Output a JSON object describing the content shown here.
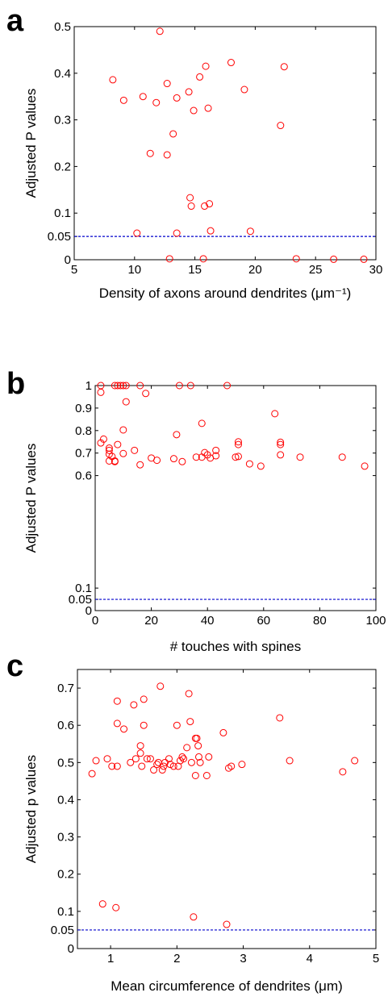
{
  "chart_data": [
    {
      "panel": "a",
      "type": "scatter",
      "xlabel": "Density of axons around dendrites (μm⁻¹)",
      "ylabel": "Adjusted P values",
      "xlim": [
        5,
        30
      ],
      "ylim": [
        0,
        0.5
      ],
      "xticks": [
        "5",
        "10",
        "15",
        "20",
        "25",
        "30"
      ],
      "yticks": [
        "0",
        "0.05",
        "0.1",
        "0.2",
        "0.3",
        "0.4",
        "0.5"
      ],
      "ytick_values": [
        0,
        0.05,
        0.1,
        0.2,
        0.3,
        0.4,
        0.5
      ],
      "xtick_values": [
        5,
        10,
        15,
        20,
        25,
        30
      ],
      "reference_line": 0.05,
      "grid": false,
      "marker_color": "#ff0000",
      "line_color": "#0000cc",
      "points": [
        [
          12.1,
          0.49
        ],
        [
          8.2,
          0.386
        ],
        [
          9.1,
          0.342
        ],
        [
          10.7,
          0.35
        ],
        [
          11.8,
          0.337
        ],
        [
          11.3,
          0.228
        ],
        [
          12.7,
          0.378
        ],
        [
          12.7,
          0.225
        ],
        [
          13.2,
          0.27
        ],
        [
          13.5,
          0.347
        ],
        [
          14.5,
          0.36
        ],
        [
          14.9,
          0.32
        ],
        [
          15.4,
          0.392
        ],
        [
          15.9,
          0.415
        ],
        [
          16.1,
          0.325
        ],
        [
          18.0,
          0.423
        ],
        [
          19.1,
          0.365
        ],
        [
          22.1,
          0.288
        ],
        [
          22.4,
          0.414
        ],
        [
          14.6,
          0.133
        ],
        [
          14.7,
          0.115
        ],
        [
          15.8,
          0.115
        ],
        [
          16.2,
          0.12
        ],
        [
          10.2,
          0.057
        ],
        [
          13.5,
          0.057
        ],
        [
          16.3,
          0.062
        ],
        [
          19.6,
          0.061
        ],
        [
          12.9,
          0.002
        ],
        [
          15.7,
          0.002
        ],
        [
          23.4,
          0.002
        ],
        [
          26.5,
          0.001
        ],
        [
          29.0,
          0.001
        ]
      ]
    },
    {
      "panel": "b",
      "type": "scatter",
      "xlabel": "# touches with spines",
      "ylabel": "Adjusted P values",
      "xlim": [
        0,
        100
      ],
      "ylim": [
        0,
        1
      ],
      "xticks": [
        "0",
        "20",
        "40",
        "60",
        "80",
        "100"
      ],
      "yticks": [
        "0",
        "0.05",
        "0.1",
        "0.6",
        "0.7",
        "0.8",
        "0.9",
        "1"
      ],
      "ytick_values": [
        0,
        0.05,
        0.1,
        0.6,
        0.7,
        0.8,
        0.9,
        1
      ],
      "xtick_values": [
        0,
        20,
        40,
        60,
        80,
        100
      ],
      "reference_line": 0.05,
      "grid": false,
      "marker_color": "#ff0000",
      "line_color": "#0000cc",
      "points": [
        [
          2,
          1.0
        ],
        [
          2,
          0.97
        ],
        [
          7,
          1.0
        ],
        [
          8,
          1.0
        ],
        [
          9,
          1.0
        ],
        [
          10,
          1.0
        ],
        [
          11,
          1.0
        ],
        [
          16,
          1.0
        ],
        [
          30,
          1.0
        ],
        [
          34,
          1.0
        ],
        [
          47,
          1.0
        ],
        [
          18,
          0.965
        ],
        [
          11,
          0.928
        ],
        [
          38,
          0.832
        ],
        [
          64,
          0.875
        ],
        [
          10,
          0.803
        ],
        [
          29,
          0.782
        ],
        [
          2,
          0.745
        ],
        [
          3,
          0.762
        ],
        [
          8,
          0.738
        ],
        [
          14,
          0.712
        ],
        [
          5,
          0.722
        ],
        [
          5,
          0.712
        ],
        [
          5,
          0.695
        ],
        [
          6,
          0.685
        ],
        [
          5,
          0.665
        ],
        [
          7,
          0.662
        ],
        [
          7,
          0.665
        ],
        [
          10,
          0.698
        ],
        [
          16,
          0.648
        ],
        [
          20,
          0.678
        ],
        [
          22,
          0.668
        ],
        [
          28,
          0.675
        ],
        [
          31,
          0.662
        ],
        [
          36,
          0.682
        ],
        [
          38,
          0.682
        ],
        [
          39,
          0.702
        ],
        [
          40,
          0.692
        ],
        [
          41,
          0.678
        ],
        [
          43,
          0.712
        ],
        [
          43,
          0.688
        ],
        [
          50,
          0.682
        ],
        [
          51,
          0.685
        ],
        [
          51,
          0.738
        ],
        [
          51,
          0.75
        ],
        [
          55,
          0.652
        ],
        [
          59,
          0.642
        ],
        [
          66,
          0.738
        ],
        [
          66,
          0.748
        ],
        [
          66,
          0.692
        ],
        [
          73,
          0.682
        ],
        [
          88,
          0.682
        ],
        [
          96,
          0.642
        ]
      ]
    },
    {
      "panel": "c",
      "type": "scatter",
      "xlabel": "Mean circumference of dendrites (μm)",
      "ylabel": "Adjusted p values",
      "xlim": [
        0.5,
        5
      ],
      "ylim": [
        0,
        0.75
      ],
      "xticks": [
        "1",
        "2",
        "3",
        "4",
        "5"
      ],
      "yticks": [
        "0",
        "0.05",
        "0.1",
        "0.2",
        "0.3",
        "0.4",
        "0.5",
        "0.6",
        "0.7"
      ],
      "ytick_values": [
        0,
        0.05,
        0.1,
        0.2,
        0.3,
        0.4,
        0.5,
        0.6,
        0.7
      ],
      "xtick_values": [
        1,
        2,
        3,
        4,
        5
      ],
      "reference_line": 0.05,
      "grid": false,
      "marker_color": "#ff0000",
      "line_color": "#0000cc",
      "points": [
        [
          0.72,
          0.47
        ],
        [
          0.78,
          0.505
        ],
        [
          0.88,
          0.12
        ],
        [
          0.95,
          0.51
        ],
        [
          1.02,
          0.49
        ],
        [
          1.08,
          0.11
        ],
        [
          1.1,
          0.665
        ],
        [
          1.1,
          0.605
        ],
        [
          1.1,
          0.49
        ],
        [
          1.2,
          0.59
        ],
        [
          1.3,
          0.5
        ],
        [
          1.35,
          0.655
        ],
        [
          1.38,
          0.51
        ],
        [
          1.45,
          0.525
        ],
        [
          1.45,
          0.545
        ],
        [
          1.47,
          0.49
        ],
        [
          1.5,
          0.67
        ],
        [
          1.5,
          0.6
        ],
        [
          1.55,
          0.51
        ],
        [
          1.6,
          0.51
        ],
        [
          1.65,
          0.48
        ],
        [
          1.7,
          0.495
        ],
        [
          1.72,
          0.5
        ],
        [
          1.75,
          0.705
        ],
        [
          1.78,
          0.48
        ],
        [
          1.8,
          0.49
        ],
        [
          1.82,
          0.5
        ],
        [
          1.88,
          0.51
        ],
        [
          1.9,
          0.495
        ],
        [
          1.95,
          0.49
        ],
        [
          2.0,
          0.6
        ],
        [
          2.02,
          0.49
        ],
        [
          2.05,
          0.505
        ],
        [
          2.08,
          0.515
        ],
        [
          2.1,
          0.51
        ],
        [
          2.15,
          0.54
        ],
        [
          2.18,
          0.685
        ],
        [
          2.2,
          0.61
        ],
        [
          2.22,
          0.5
        ],
        [
          2.25,
          0.085
        ],
        [
          2.28,
          0.565
        ],
        [
          2.28,
          0.465
        ],
        [
          2.3,
          0.565
        ],
        [
          2.32,
          0.545
        ],
        [
          2.33,
          0.515
        ],
        [
          2.35,
          0.5
        ],
        [
          2.45,
          0.465
        ],
        [
          2.48,
          0.515
        ],
        [
          2.7,
          0.58
        ],
        [
          2.75,
          0.065
        ],
        [
          2.78,
          0.485
        ],
        [
          2.82,
          0.49
        ],
        [
          2.98,
          0.495
        ],
        [
          3.55,
          0.62
        ],
        [
          3.7,
          0.505
        ],
        [
          4.5,
          0.475
        ],
        [
          4.68,
          0.505
        ]
      ]
    }
  ]
}
